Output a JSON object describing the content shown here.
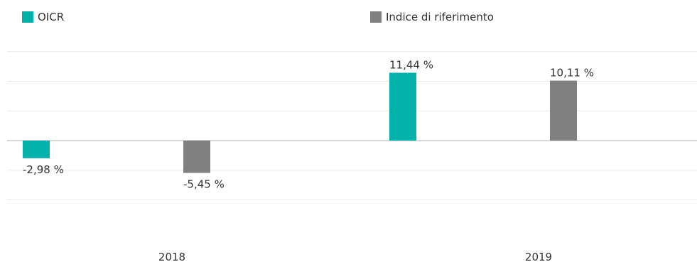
{
  "legend": {
    "items": [
      {
        "label": "OICR",
        "color": "#00B2A9"
      },
      {
        "label": "Indice di riferimento",
        "color": "#808080"
      }
    ]
  },
  "chart_data": {
    "type": "bar",
    "categories": [
      "2018",
      "2019"
    ],
    "series": [
      {
        "name": "OICR",
        "color": "#00B2A9",
        "values": [
          -2.98,
          11.44
        ],
        "labels": [
          "-2,98 %",
          "11,44 %"
        ]
      },
      {
        "name": "Indice di riferimento",
        "color": "#808080",
        "values": [
          -5.45,
          10.11
        ],
        "labels": [
          "-5,45 %",
          "10,11 %"
        ]
      }
    ],
    "ylim": [
      -10,
      15
    ],
    "grid": true,
    "legend_position": "top"
  }
}
